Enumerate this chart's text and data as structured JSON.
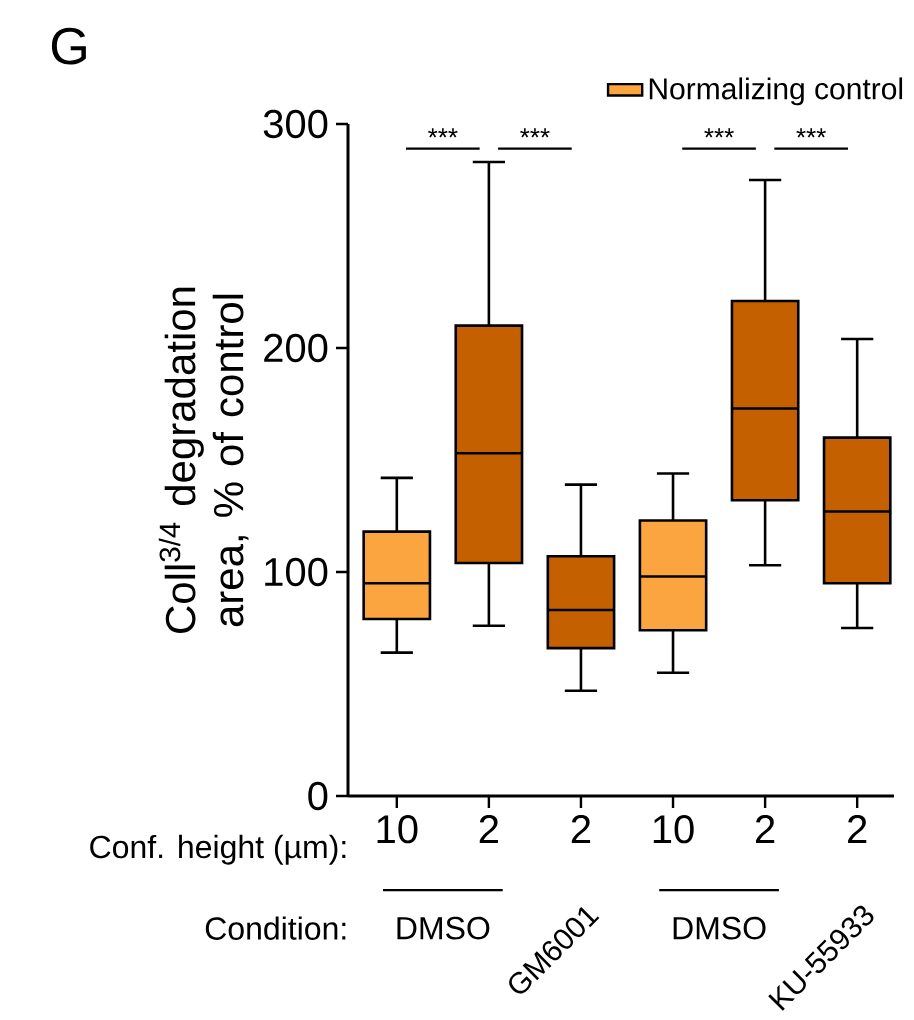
{
  "chart_data": {
    "type": "box",
    "title": "G",
    "ylabel": "Coll$^{3/4}$ degradation area, % of control",
    "categories": [
      "10",
      "2",
      "2",
      "10",
      "2",
      "2"
    ],
    "series": [
      {
        "name": "Normalizing control",
        "color": "#fba540",
        "boxes": [
          {
            "low": 64,
            "q1": 79,
            "median": 95,
            "q3": 118,
            "high": 142
          },
          null,
          null,
          {
            "low": 55,
            "q1": 74,
            "median": 98,
            "q3": 123,
            "high": 144
          },
          null,
          null
        ]
      },
      {
        "color": "#c46000",
        "boxes": [
          null,
          {
            "low": 76,
            "q1": 104,
            "median": 153,
            "q3": 210,
            "high": 283
          },
          {
            "low": 47,
            "q1": 66,
            "median": 83,
            "q3": 107,
            "high": 139
          },
          null,
          {
            "low": 103,
            "q1": 132,
            "median": 173,
            "q3": 221,
            "high": 275
          },
          {
            "low": 75,
            "q1": 95,
            "median": 127,
            "q3": 160,
            "high": 204
          }
        ]
      }
    ],
    "ylim": [
      0,
      300
    ],
    "yticks": [
      0,
      100,
      200,
      300
    ],
    "legend": "top",
    "annotations": [
      "***",
      "***",
      "***",
      "***",
      "Conf. height (µm):",
      "Condition:",
      "DMSO",
      "GM6001",
      "DMSO",
      "KU-55933"
    ]
  }
}
